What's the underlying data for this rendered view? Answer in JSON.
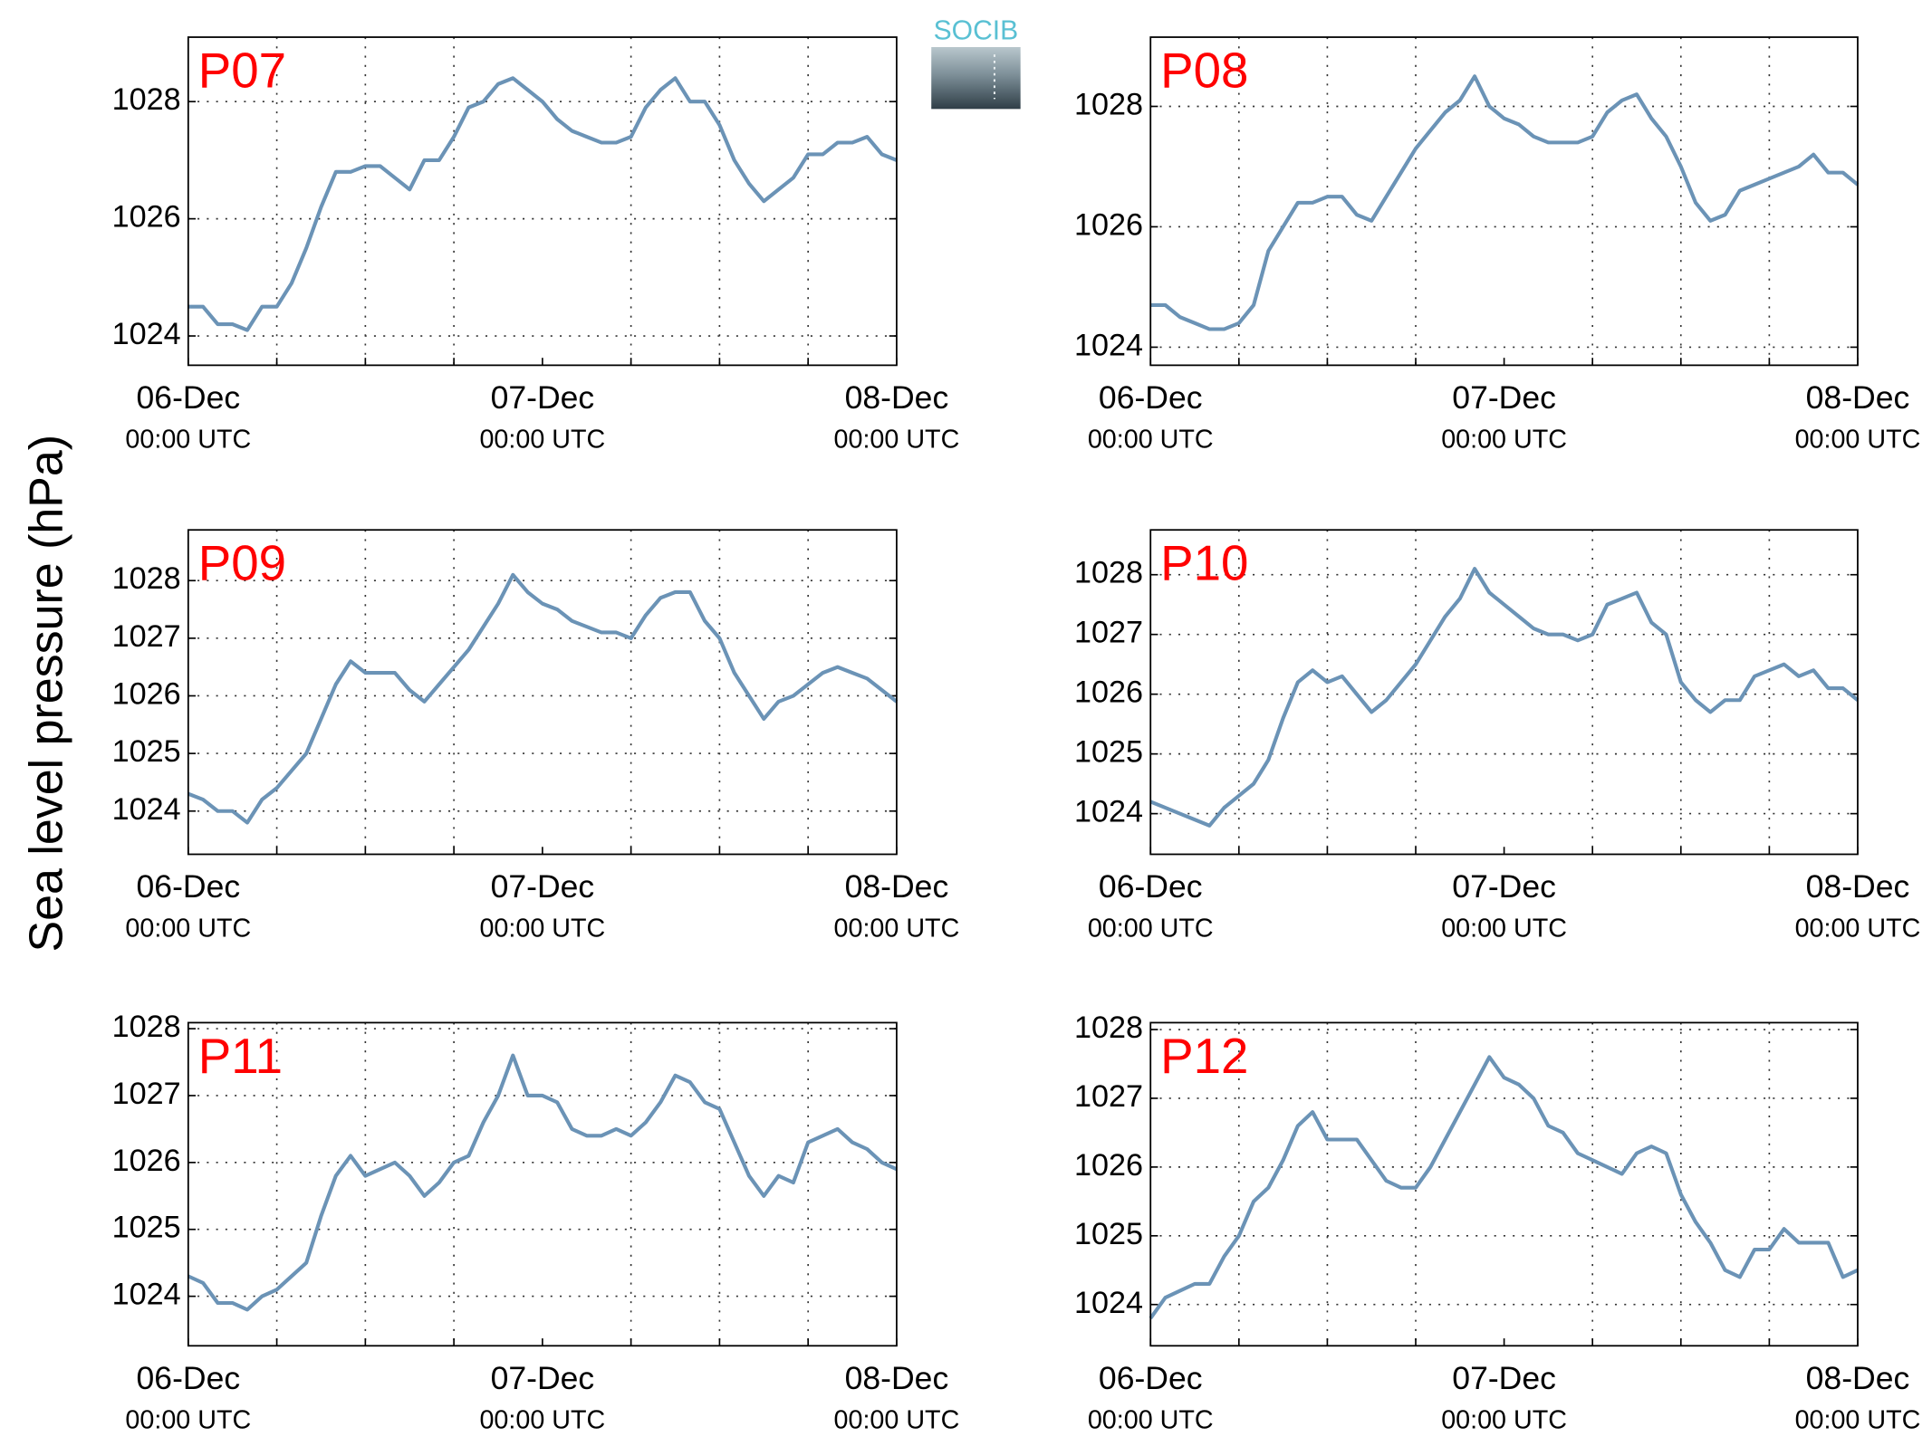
{
  "logo_text": "SOCIB",
  "ylabel": "Sea level pressure (hPa)",
  "chart_data": [
    {
      "type": "line",
      "title": "P07",
      "color": "#6b93b6",
      "xlim": [
        0,
        48
      ],
      "ylim": [
        1023.5,
        1029.1
      ],
      "yticks": [
        1024,
        1026,
        1028
      ],
      "xticks": [
        {
          "value": 0,
          "label": "06-Dec"
        },
        {
          "value": 24,
          "label": "07-Dec"
        },
        {
          "value": 48,
          "label": "08-Dec"
        }
      ],
      "xtick_sublabels": [
        "00:00 UTC",
        "00:00 UTC",
        "00:00 UTC"
      ],
      "x_minor_ticks": [
        6,
        12,
        18,
        30,
        36,
        42
      ],
      "grid": true,
      "x": [
        0,
        1,
        2,
        3,
        4,
        5,
        6,
        7,
        8,
        9,
        10,
        11,
        12,
        13,
        14,
        15,
        16,
        17,
        18,
        19,
        20,
        21,
        22,
        23,
        24,
        25,
        26,
        27,
        28,
        29,
        30,
        31,
        32,
        33,
        34,
        35,
        36,
        37,
        38,
        39,
        40,
        41,
        42,
        43,
        44,
        45,
        46,
        47,
        48
      ],
      "values": [
        1024.5,
        1024.5,
        1024.2,
        1024.2,
        1024.1,
        1024.5,
        1024.5,
        1024.9,
        1025.5,
        1026.2,
        1026.8,
        1026.8,
        1026.9,
        1026.9,
        1026.7,
        1026.5,
        1027.0,
        1027.0,
        1027.4,
        1027.9,
        1028.0,
        1028.3,
        1028.4,
        1028.2,
        1028.0,
        1027.7,
        1027.5,
        1027.4,
        1027.3,
        1027.3,
        1027.4,
        1027.9,
        1028.2,
        1028.4,
        1028.0,
        1028.0,
        1027.6,
        1027.0,
        1026.6,
        1026.3,
        1026.5,
        1026.7,
        1027.1,
        1027.1,
        1027.3,
        1027.3,
        1027.4,
        1027.1,
        1027.0
      ]
    },
    {
      "type": "line",
      "title": "P08",
      "color": "#6b93b6",
      "xlim": [
        0,
        48
      ],
      "ylim": [
        1023.7,
        1029.15
      ],
      "yticks": [
        1024,
        1026,
        1028
      ],
      "xticks": [
        {
          "value": 0,
          "label": "06-Dec"
        },
        {
          "value": 24,
          "label": "07-Dec"
        },
        {
          "value": 48,
          "label": "08-Dec"
        }
      ],
      "xtick_sublabels": [
        "00:00 UTC",
        "00:00 UTC",
        "00:00 UTC"
      ],
      "x_minor_ticks": [
        6,
        12,
        18,
        30,
        36,
        42
      ],
      "grid": true,
      "x": [
        0,
        1,
        2,
        3,
        4,
        5,
        6,
        7,
        8,
        9,
        10,
        11,
        12,
        13,
        14,
        15,
        16,
        17,
        18,
        19,
        20,
        21,
        22,
        23,
        24,
        25,
        26,
        27,
        28,
        29,
        30,
        31,
        32,
        33,
        34,
        35,
        36,
        37,
        38,
        39,
        40,
        41,
        42,
        43,
        44,
        45,
        46,
        47,
        48
      ],
      "values": [
        1024.7,
        1024.7,
        1024.5,
        1024.4,
        1024.3,
        1024.3,
        1024.4,
        1024.7,
        1025.6,
        1026.0,
        1026.4,
        1026.4,
        1026.5,
        1026.5,
        1026.2,
        1026.1,
        1026.5,
        1026.9,
        1027.3,
        1027.6,
        1027.9,
        1028.1,
        1028.5,
        1028.0,
        1027.8,
        1027.7,
        1027.5,
        1027.4,
        1027.4,
        1027.4,
        1027.5,
        1027.9,
        1028.1,
        1028.2,
        1027.8,
        1027.5,
        1027.0,
        1026.4,
        1026.1,
        1026.2,
        1026.6,
        1026.7,
        1026.8,
        1026.9,
        1027.0,
        1027.2,
        1026.9,
        1026.9,
        1026.7
      ]
    },
    {
      "type": "line",
      "title": "P09",
      "color": "#6b93b6",
      "xlim": [
        0,
        48
      ],
      "ylim": [
        1023.25,
        1028.88
      ],
      "yticks": [
        1024,
        1025,
        1026,
        1027,
        1028
      ],
      "xticks": [
        {
          "value": 0,
          "label": "06-Dec"
        },
        {
          "value": 24,
          "label": "07-Dec"
        },
        {
          "value": 48,
          "label": "08-Dec"
        }
      ],
      "xtick_sublabels": [
        "00:00 UTC",
        "00:00 UTC",
        "00:00 UTC"
      ],
      "x_minor_ticks": [
        6,
        12,
        18,
        30,
        36,
        42
      ],
      "grid": true,
      "x": [
        0,
        1,
        2,
        3,
        4,
        5,
        6,
        7,
        8,
        9,
        10,
        11,
        12,
        13,
        14,
        15,
        16,
        17,
        18,
        19,
        20,
        21,
        22,
        23,
        24,
        25,
        26,
        27,
        28,
        29,
        30,
        31,
        32,
        33,
        34,
        35,
        36,
        37,
        38,
        39,
        40,
        41,
        42,
        43,
        44,
        45,
        46,
        47,
        48
      ],
      "values": [
        1024.3,
        1024.2,
        1024.0,
        1024.0,
        1023.8,
        1024.2,
        1024.4,
        1024.7,
        1025.0,
        1025.6,
        1026.2,
        1026.6,
        1026.4,
        1026.4,
        1026.4,
        1026.1,
        1025.9,
        1026.2,
        1026.5,
        1026.8,
        1027.2,
        1027.6,
        1028.1,
        1027.8,
        1027.6,
        1027.5,
        1027.3,
        1027.2,
        1027.1,
        1027.1,
        1027.0,
        1027.4,
        1027.7,
        1027.8,
        1027.8,
        1027.3,
        1027.0,
        1026.4,
        1026.0,
        1025.6,
        1025.9,
        1026.0,
        1026.2,
        1026.4,
        1026.5,
        1026.4,
        1026.3,
        1026.1,
        1025.9
      ]
    },
    {
      "type": "line",
      "title": "P10",
      "color": "#6b93b6",
      "xlim": [
        0,
        48
      ],
      "ylim": [
        1023.32,
        1028.75
      ],
      "yticks": [
        1024,
        1025,
        1026,
        1027,
        1028
      ],
      "xticks": [
        {
          "value": 0,
          "label": "06-Dec"
        },
        {
          "value": 24,
          "label": "07-Dec"
        },
        {
          "value": 48,
          "label": "08-Dec"
        }
      ],
      "xtick_sublabels": [
        "00:00 UTC",
        "00:00 UTC",
        "00:00 UTC"
      ],
      "x_minor_ticks": [
        6,
        12,
        18,
        30,
        36,
        42
      ],
      "grid": true,
      "x": [
        0,
        1,
        2,
        3,
        4,
        5,
        6,
        7,
        8,
        9,
        10,
        11,
        12,
        13,
        14,
        15,
        16,
        17,
        18,
        19,
        20,
        21,
        22,
        23,
        24,
        25,
        26,
        27,
        28,
        29,
        30,
        31,
        32,
        33,
        34,
        35,
        36,
        37,
        38,
        39,
        40,
        41,
        42,
        43,
        44,
        45,
        46,
        47,
        48
      ],
      "values": [
        1024.2,
        1024.1,
        1024.0,
        1023.9,
        1023.8,
        1024.1,
        1024.3,
        1024.5,
        1024.9,
        1025.6,
        1026.2,
        1026.4,
        1026.2,
        1026.3,
        1026.0,
        1025.7,
        1025.9,
        1026.2,
        1026.5,
        1026.9,
        1027.3,
        1027.6,
        1028.1,
        1027.7,
        1027.5,
        1027.3,
        1027.1,
        1027.0,
        1027.0,
        1026.9,
        1027.0,
        1027.5,
        1027.6,
        1027.7,
        1027.2,
        1027.0,
        1026.2,
        1025.9,
        1025.7,
        1025.9,
        1025.9,
        1026.3,
        1026.4,
        1026.5,
        1026.3,
        1026.4,
        1026.1,
        1026.1,
        1025.9
      ]
    },
    {
      "type": "line",
      "title": "P11",
      "color": "#6b93b6",
      "xlim": [
        0,
        48
      ],
      "ylim": [
        1023.26,
        1028.09
      ],
      "yticks": [
        1024,
        1025,
        1026,
        1027,
        1028
      ],
      "xticks": [
        {
          "value": 0,
          "label": "06-Dec"
        },
        {
          "value": 24,
          "label": "07-Dec"
        },
        {
          "value": 48,
          "label": "08-Dec"
        }
      ],
      "xtick_sublabels": [
        "00:00 UTC",
        "00:00 UTC",
        "00:00 UTC"
      ],
      "x_minor_ticks": [
        6,
        12,
        18,
        30,
        36,
        42
      ],
      "grid": true,
      "x": [
        0,
        1,
        2,
        3,
        4,
        5,
        6,
        7,
        8,
        9,
        10,
        11,
        12,
        13,
        14,
        15,
        16,
        17,
        18,
        19,
        20,
        21,
        22,
        23,
        24,
        25,
        26,
        27,
        28,
        29,
        30,
        31,
        32,
        33,
        34,
        35,
        36,
        37,
        38,
        39,
        40,
        41,
        42,
        43,
        44,
        45,
        46,
        47,
        48
      ],
      "values": [
        1024.3,
        1024.2,
        1023.9,
        1023.9,
        1023.8,
        1024.0,
        1024.1,
        1024.3,
        1024.5,
        1025.2,
        1025.8,
        1026.1,
        1025.8,
        1025.9,
        1026.0,
        1025.8,
        1025.5,
        1025.7,
        1026.0,
        1026.1,
        1026.6,
        1027.0,
        1027.6,
        1027.0,
        1027.0,
        1026.9,
        1026.5,
        1026.4,
        1026.4,
        1026.5,
        1026.4,
        1026.6,
        1026.9,
        1027.3,
        1027.2,
        1026.9,
        1026.8,
        1026.3,
        1025.8,
        1025.5,
        1025.8,
        1025.7,
        1026.3,
        1026.4,
        1026.5,
        1026.3,
        1026.2,
        1026.0,
        1025.9
      ]
    },
    {
      "type": "line",
      "title": "P12",
      "color": "#6b93b6",
      "xlim": [
        0,
        48
      ],
      "ylim": [
        1023.4,
        1028.1
      ],
      "yticks": [
        1024,
        1025,
        1026,
        1027,
        1028
      ],
      "xticks": [
        {
          "value": 0,
          "label": "06-Dec"
        },
        {
          "value": 24,
          "label": "07-Dec"
        },
        {
          "value": 48,
          "label": "08-Dec"
        }
      ],
      "xtick_sublabels": [
        "00:00 UTC",
        "00:00 UTC",
        "00:00 UTC"
      ],
      "x_minor_ticks": [
        6,
        12,
        18,
        30,
        36,
        42
      ],
      "grid": true,
      "x": [
        0,
        1,
        2,
        3,
        4,
        5,
        6,
        7,
        8,
        9,
        10,
        11,
        12,
        13,
        14,
        15,
        16,
        17,
        18,
        19,
        20,
        21,
        22,
        23,
        24,
        25,
        26,
        27,
        28,
        29,
        30,
        31,
        32,
        33,
        34,
        35,
        36,
        37,
        38,
        39,
        40,
        41,
        42,
        43,
        44,
        45,
        46,
        47,
        48
      ],
      "values": [
        1023.8,
        1024.1,
        1024.2,
        1024.3,
        1024.3,
        1024.7,
        1025.0,
        1025.5,
        1025.7,
        1026.1,
        1026.6,
        1026.8,
        1026.4,
        1026.4,
        1026.4,
        1026.1,
        1025.8,
        1025.7,
        1025.7,
        1026.0,
        1026.4,
        1026.8,
        1027.2,
        1027.6,
        1027.3,
        1027.2,
        1027.0,
        1026.6,
        1026.5,
        1026.2,
        1026.1,
        1026.0,
        1025.9,
        1026.2,
        1026.3,
        1026.2,
        1025.6,
        1025.2,
        1024.9,
        1024.5,
        1024.4,
        1024.8,
        1024.8,
        1025.1,
        1024.9,
        1024.9,
        1024.9,
        1024.4,
        1024.5
      ]
    }
  ]
}
